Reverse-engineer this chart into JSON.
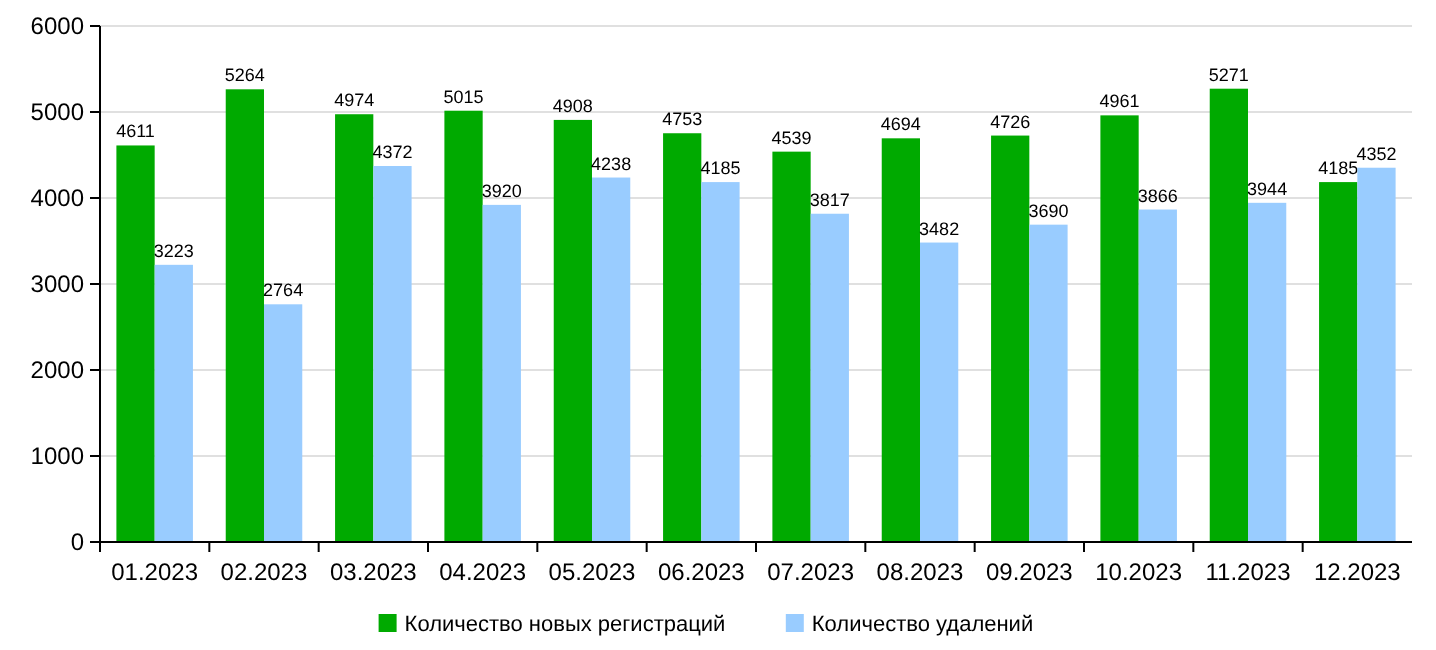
{
  "chart_data": {
    "type": "bar",
    "categories": [
      "01.2023",
      "02.2023",
      "03.2023",
      "04.2023",
      "05.2023",
      "06.2023",
      "07.2023",
      "08.2023",
      "09.2023",
      "10.2023",
      "11.2023",
      "12.2023"
    ],
    "series": [
      {
        "name": "Количество новых регистраций",
        "color": "#00aa00",
        "values": [
          4611,
          5264,
          4974,
          5015,
          4908,
          4753,
          4539,
          4694,
          4726,
          4961,
          5271,
          4185
        ]
      },
      {
        "name": "Количество удалений",
        "color": "#99ccff",
        "values": [
          3223,
          2764,
          4372,
          3920,
          4238,
          4185,
          3817,
          3482,
          3690,
          3866,
          3944,
          4352
        ]
      }
    ],
    "ylim": [
      0,
      6000
    ],
    "yticks": [
      0,
      1000,
      2000,
      3000,
      4000,
      5000,
      6000
    ],
    "grid": "y",
    "legend": "bottom",
    "data_labels": true
  }
}
